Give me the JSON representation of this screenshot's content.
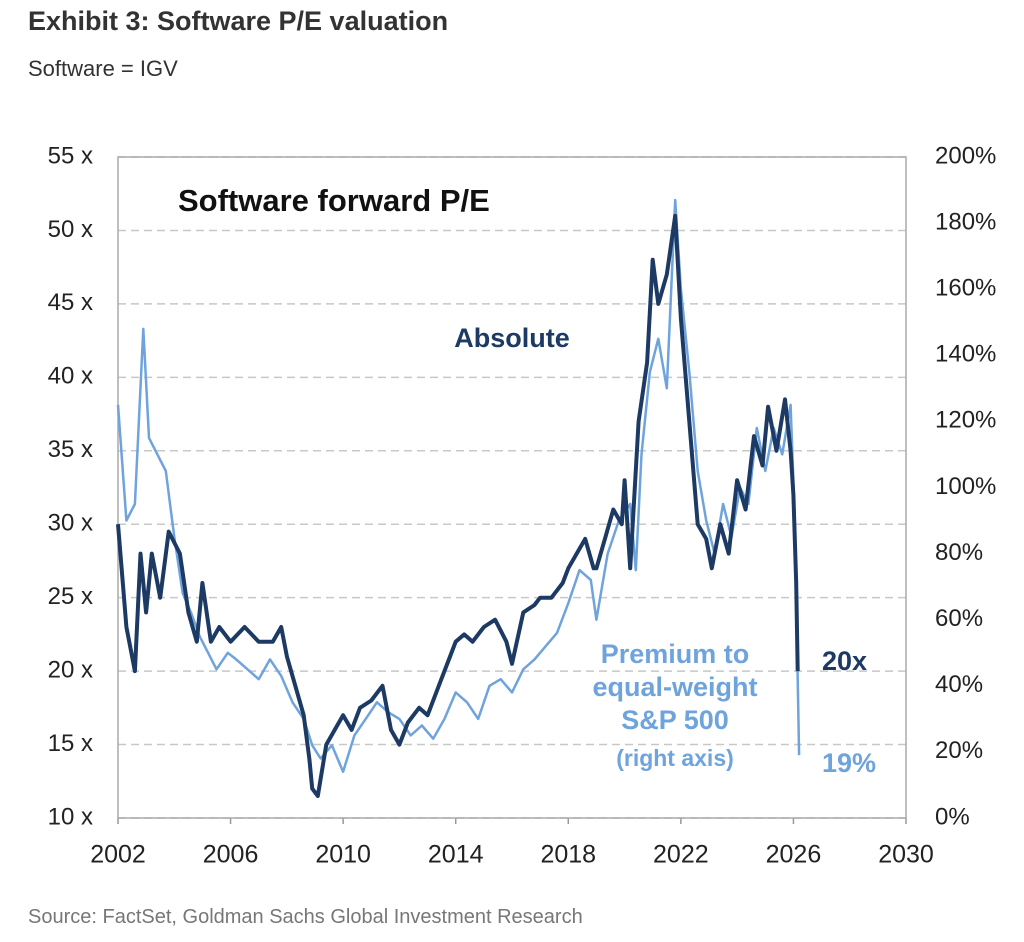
{
  "chart_data": {
    "type": "line",
    "title": "Exhibit 3: Software P/E valuation",
    "subtitle": "Software = IGV",
    "source": "Source: FactSet, Goldman Sachs Global Investment Research",
    "annotations": [
      {
        "text": "Software forward P/E"
      },
      {
        "text": "20x"
      },
      {
        "text": "19%"
      },
      {
        "text": "(right axis)"
      }
    ],
    "xlim": [
      2002,
      2030
    ],
    "xticks": [
      2002,
      2006,
      2010,
      2014,
      2018,
      2022,
      2026,
      2030
    ],
    "ylim": [
      10,
      55
    ],
    "yticks": [
      {
        "value": 10,
        "label": "10 x"
      },
      {
        "value": 15,
        "label": "15 x"
      },
      {
        "value": 20,
        "label": "20 x"
      },
      {
        "value": 25,
        "label": "25 x"
      },
      {
        "value": 30,
        "label": "30 x"
      },
      {
        "value": 35,
        "label": "35 x"
      },
      {
        "value": 40,
        "label": "40 x"
      },
      {
        "value": 45,
        "label": "45 x"
      },
      {
        "value": 50,
        "label": "50 x"
      },
      {
        "value": 55,
        "label": "55 x"
      }
    ],
    "y2lim": [
      0,
      200
    ],
    "y2ticks": [
      {
        "value": 0,
        "label": "0%"
      },
      {
        "value": 20,
        "label": "20%"
      },
      {
        "value": 40,
        "label": "40%"
      },
      {
        "value": 60,
        "label": "60%"
      },
      {
        "value": 80,
        "label": "80%"
      },
      {
        "value": 100,
        "label": "100%"
      },
      {
        "value": 120,
        "label": "120%"
      },
      {
        "value": 140,
        "label": "140%"
      },
      {
        "value": 160,
        "label": "160%"
      },
      {
        "value": 180,
        "label": "180%"
      },
      {
        "value": 200,
        "label": "200%"
      }
    ],
    "grid": true,
    "series": [
      {
        "name": "Premium to equal-weight S&P 500",
        "color": "#6fa3dc",
        "axis": "y2",
        "width": 2.5,
        "x": [
          2002.0,
          2002.3,
          2002.6,
          2002.9,
          2003.1,
          2003.4,
          2003.7,
          2004.0,
          2004.3,
          2004.6,
          2004.9,
          2005.2,
          2005.5,
          2005.9,
          2006.2,
          2006.6,
          2007.0,
          2007.4,
          2007.8,
          2008.2,
          2008.6,
          2008.9,
          2009.2,
          2009.6,
          2010.0,
          2010.4,
          2010.8,
          2011.2,
          2011.6,
          2012.0,
          2012.4,
          2012.8,
          2013.2,
          2013.6,
          2014.0,
          2014.4,
          2014.8,
          2015.2,
          2015.6,
          2016.0,
          2016.4,
          2016.8,
          2017.2,
          2017.6,
          2018.0,
          2018.4,
          2018.8,
          2019.0,
          2019.4,
          2019.8,
          2020.2,
          2020.4,
          2020.6,
          2020.9,
          2021.2,
          2021.5,
          2021.8,
          2022.0,
          2022.3,
          2022.6,
          2022.9,
          2023.2,
          2023.5,
          2023.8,
          2024.1,
          2024.4,
          2024.7,
          2025.0,
          2025.3,
          2025.6,
          2025.9,
          2026.05,
          2026.2
        ],
        "values": [
          125,
          90,
          95,
          148,
          115,
          110,
          105,
          85,
          68,
          62,
          55,
          50,
          45,
          50,
          48,
          45,
          42,
          48,
          43,
          35,
          30,
          22,
          18,
          22,
          14,
          25,
          30,
          35,
          32,
          30,
          25,
          28,
          24,
          30,
          38,
          35,
          30,
          40,
          42,
          38,
          45,
          48,
          52,
          56,
          65,
          75,
          72,
          60,
          80,
          90,
          95,
          75,
          110,
          135,
          145,
          130,
          187,
          160,
          135,
          105,
          90,
          80,
          95,
          85,
          100,
          95,
          118,
          105,
          118,
          110,
          125,
          90,
          19
        ]
      },
      {
        "name": "Absolute",
        "color": "#1c3a63",
        "width": 4,
        "x": [
          2002.0,
          2002.3,
          2002.6,
          2002.8,
          2003.0,
          2003.2,
          2003.5,
          2003.8,
          2004.2,
          2004.5,
          2004.8,
          2005.0,
          2005.3,
          2005.6,
          2006.0,
          2006.5,
          2007.0,
          2007.5,
          2007.8,
          2008.0,
          2008.3,
          2008.6,
          2008.8,
          2008.9,
          2009.1,
          2009.4,
          2009.7,
          2010.0,
          2010.3,
          2010.6,
          2011.0,
          2011.4,
          2011.7,
          2012.0,
          2012.3,
          2012.7,
          2013.0,
          2013.4,
          2013.8,
          2014.0,
          2014.3,
          2014.6,
          2015.0,
          2015.4,
          2015.8,
          2016.0,
          2016.4,
          2016.8,
          2017.0,
          2017.4,
          2017.8,
          2018.0,
          2018.3,
          2018.6,
          2018.9,
          2019.0,
          2019.3,
          2019.6,
          2019.9,
          2020.0,
          2020.2,
          2020.5,
          2020.8,
          2021.0,
          2021.2,
          2021.5,
          2021.8,
          2022.0,
          2022.3,
          2022.6,
          2022.9,
          2023.1,
          2023.4,
          2023.7,
          2024.0,
          2024.3,
          2024.6,
          2024.9,
          2025.1,
          2025.4,
          2025.7,
          2025.9,
          2026.0,
          2026.1,
          2026.15
        ],
        "values": [
          30,
          23,
          20,
          28,
          24,
          28,
          25,
          29.5,
          28,
          24,
          22,
          26,
          22,
          23,
          22,
          23,
          22,
          22,
          23,
          21,
          19,
          17,
          14,
          12,
          11.5,
          15,
          16,
          17,
          16,
          17.5,
          18,
          19,
          16,
          15,
          16.5,
          17.5,
          17,
          19,
          21,
          22,
          22.5,
          22,
          23,
          23.5,
          22,
          20.5,
          24,
          24.5,
          25,
          25,
          26,
          27,
          28,
          29,
          27,
          27,
          29,
          31,
          30,
          33,
          27,
          37,
          41,
          48,
          45,
          47,
          51,
          44,
          37,
          30,
          29,
          27,
          30,
          28,
          33,
          31,
          36,
          34,
          38,
          35,
          38.5,
          35,
          32,
          26,
          20
        ]
      }
    ]
  }
}
